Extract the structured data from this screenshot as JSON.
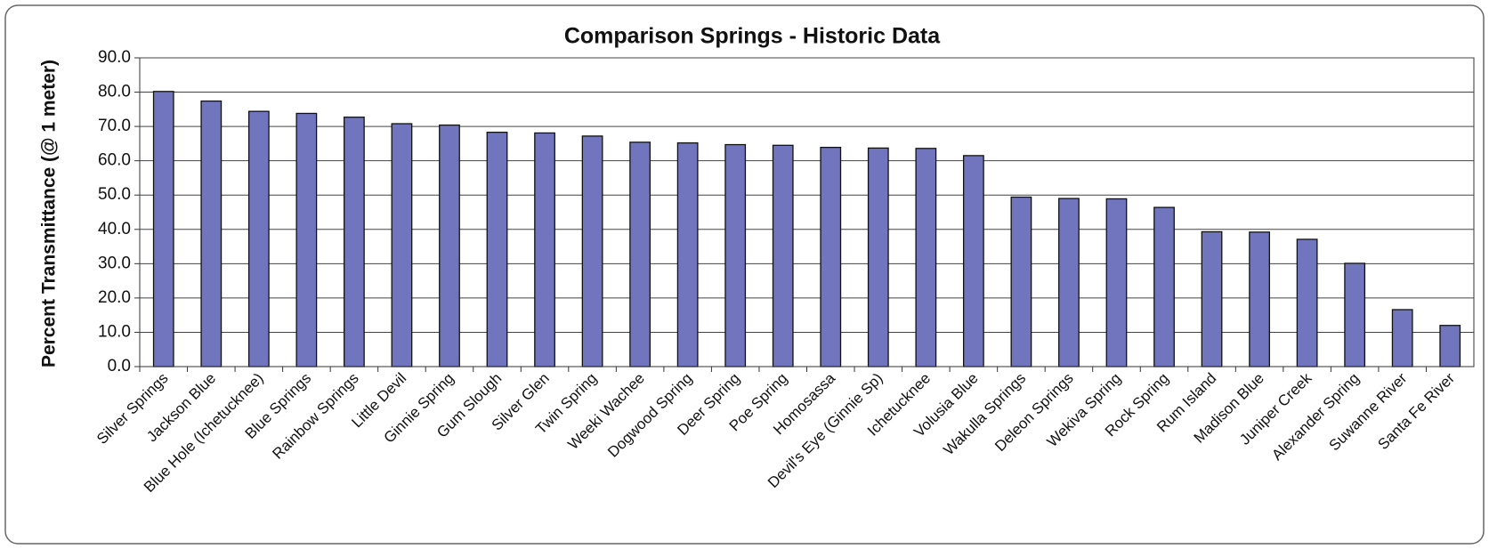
{
  "chart_data": {
    "type": "bar",
    "title": "Comparison Springs - Historic Data",
    "y_label": "Percent Transmittance (@ 1 meter)",
    "categories": [
      "Silver Springs",
      "Jackson Blue",
      "Blue Hole (Ichetucknee)",
      "Blue Springs",
      "Rainbow Springs",
      "Little Devil",
      "Ginnie Spring",
      "Gum Slough",
      "Silver Glen",
      "Twin Spring",
      "Weeki Wachee",
      "Dogwood Spring",
      "Deer Spring",
      "Poe Spring",
      "Homosassa",
      "Devil's Eye (Ginnie Sp)",
      "Ichetucknee",
      "Volusia Blue",
      "Wakulla Springs",
      "Deleon Springs",
      "Wekiva Spring",
      "Rock Spring",
      "Rum Island",
      "Madison Blue",
      "Juniper Creek",
      "Alexander Spring",
      "Suwanne River",
      "Santa Fe River"
    ],
    "values": [
      80.2,
      77.4,
      74.4,
      73.8,
      72.7,
      70.8,
      70.4,
      68.3,
      68.1,
      67.2,
      65.4,
      65.2,
      64.7,
      64.5,
      63.9,
      63.7,
      63.6,
      61.5,
      49.4,
      49.0,
      48.9,
      46.4,
      39.3,
      39.2,
      37.1,
      30.1,
      16.6,
      12.0
    ],
    "color": "#7175bd",
    "ylim": [
      0,
      90
    ],
    "yticks": [
      {
        "value": 0,
        "label": "0.0"
      },
      {
        "value": 10,
        "label": "10.0"
      },
      {
        "value": 20,
        "label": "20.0"
      },
      {
        "value": 30,
        "label": "30.0"
      },
      {
        "value": 40,
        "label": "40.0"
      },
      {
        "value": 50,
        "label": "50.0"
      },
      {
        "value": 60,
        "label": "60.0"
      },
      {
        "value": 70,
        "label": "70.0"
      },
      {
        "value": 80,
        "label": "80.0"
      },
      {
        "value": 90,
        "label": "90.0"
      }
    ],
    "grid": true
  }
}
